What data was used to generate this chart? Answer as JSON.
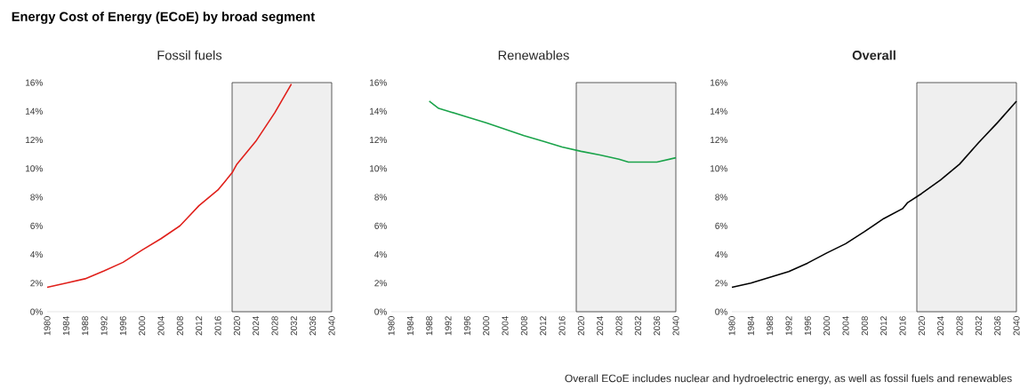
{
  "chart_data": [
    {
      "type": "line",
      "title": "Energy Cost of Energy (ECoE) by broad segment",
      "subtitle": "Fossil fuels",
      "series": [
        {
          "color": "#e0201b",
          "x": [
            1980,
            1984,
            1988,
            1992,
            1996,
            2000,
            2004,
            2008,
            2010,
            2012,
            2016,
            2019,
            2020,
            2024,
            2028,
            2031.5
          ],
          "values": [
            1.7,
            2.0,
            2.3,
            2.85,
            3.45,
            4.3,
            5.1,
            6.0,
            6.7,
            7.4,
            8.5,
            9.7,
            10.3,
            11.9,
            13.9,
            15.9
          ]
        }
      ],
      "xlim": [
        1980,
        2040
      ],
      "xticks": [
        1980,
        1984,
        1988,
        1992,
        1996,
        2000,
        2004,
        2008,
        2012,
        2016,
        2020,
        2024,
        2028,
        2032,
        2036,
        2040
      ],
      "ylim": [
        0,
        16
      ],
      "yticks": [
        {
          "value": 0,
          "label": "0%"
        },
        {
          "value": 2,
          "label": "2%"
        },
        {
          "value": 4,
          "label": "4%"
        },
        {
          "value": 6,
          "label": "6%"
        },
        {
          "value": 8,
          "label": "8%"
        },
        {
          "value": 10,
          "label": "10%"
        },
        {
          "value": 12,
          "label": "12%"
        },
        {
          "value": 14,
          "label": "14%"
        },
        {
          "value": 16,
          "label": "16%"
        }
      ],
      "bands": [
        {
          "axis": "x",
          "from": 2019,
          "to": 2040,
          "color": "#efefef"
        }
      ],
      "grid": false,
      "marker": "none",
      "line_style": "solid"
    },
    {
      "type": "line",
      "subtitle": "Renewables",
      "series": [
        {
          "color": "#1aa34a",
          "x": [
            1988,
            1990,
            1992,
            1996,
            2000,
            2004,
            2008,
            2012,
            2016,
            2020,
            2024,
            2028,
            2030,
            2036,
            2040
          ],
          "values": [
            14.7,
            14.2,
            14.0,
            13.6,
            13.2,
            12.75,
            12.3,
            11.9,
            11.5,
            11.2,
            10.95,
            10.65,
            10.45,
            10.45,
            10.75
          ]
        }
      ],
      "xlim": [
        1980,
        2040
      ],
      "xticks": [
        1980,
        1984,
        1988,
        1992,
        1996,
        2000,
        2004,
        2008,
        2012,
        2016,
        2020,
        2024,
        2028,
        2032,
        2036,
        2040
      ],
      "ylim": [
        0,
        16
      ],
      "yticks": [
        {
          "value": 0,
          "label": "0%"
        },
        {
          "value": 2,
          "label": "2%"
        },
        {
          "value": 4,
          "label": "4%"
        },
        {
          "value": 6,
          "label": "6%"
        },
        {
          "value": 8,
          "label": "8%"
        },
        {
          "value": 10,
          "label": "10%"
        },
        {
          "value": 12,
          "label": "12%"
        },
        {
          "value": 14,
          "label": "14%"
        },
        {
          "value": 16,
          "label": "16%"
        }
      ],
      "bands": [
        {
          "axis": "x",
          "from": 2019,
          "to": 2040,
          "color": "#efefef"
        }
      ],
      "grid": false,
      "marker": "none",
      "line_style": "solid"
    },
    {
      "type": "line",
      "subtitle": "Overall",
      "series": [
        {
          "color": "#000000",
          "x": [
            1980,
            1984,
            1988,
            1992,
            1996,
            2000,
            2004,
            2008,
            2012,
            2016,
            2017,
            2020,
            2024,
            2028,
            2032,
            2036,
            2040
          ],
          "values": [
            1.7,
            2.0,
            2.4,
            2.8,
            3.4,
            4.1,
            4.75,
            5.6,
            6.5,
            7.2,
            7.6,
            8.25,
            9.2,
            10.3,
            11.8,
            13.2,
            14.7
          ]
        }
      ],
      "xlim": [
        1980,
        2040
      ],
      "xticks": [
        1980,
        1984,
        1988,
        1992,
        1996,
        2000,
        2004,
        2008,
        2012,
        2016,
        2020,
        2024,
        2028,
        2032,
        2036,
        2040
      ],
      "ylim": [
        0,
        16
      ],
      "yticks": [
        {
          "value": 0,
          "label": "0%"
        },
        {
          "value": 2,
          "label": "2%"
        },
        {
          "value": 4,
          "label": "4%"
        },
        {
          "value": 6,
          "label": "6%"
        },
        {
          "value": 8,
          "label": "8%"
        },
        {
          "value": 10,
          "label": "10%"
        },
        {
          "value": 12,
          "label": "12%"
        },
        {
          "value": 14,
          "label": "14%"
        },
        {
          "value": 16,
          "label": "16%"
        }
      ],
      "bands": [
        {
          "axis": "x",
          "from": 2019,
          "to": 2040,
          "color": "#efefef"
        }
      ],
      "grid": false,
      "marker": "none",
      "line_style": "solid",
      "annotations": [
        "Overall ECoE includes nuclear and hydroelectric energy, as well as fossil fuels and renewables"
      ]
    }
  ]
}
